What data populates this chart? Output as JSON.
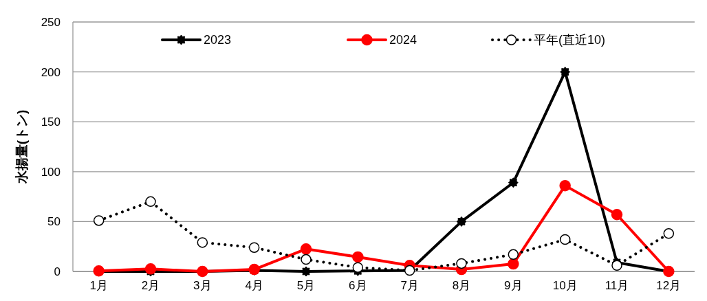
{
  "chart_data": {
    "type": "line",
    "ylabel": "水揚量(トン)",
    "categories": [
      "1月",
      "2月",
      "3月",
      "4月",
      "5月",
      "6月",
      "7月",
      "8月",
      "9月",
      "10月",
      "11月",
      "12月"
    ],
    "series": [
      {
        "name": "2023",
        "color": "#000000",
        "marker": "star",
        "line_style": "solid",
        "values": [
          0,
          0,
          0,
          1,
          0,
          0.5,
          1,
          50,
          89,
          200,
          9,
          0
        ]
      },
      {
        "name": "2024",
        "color": "#ff0000",
        "marker": "circle",
        "line_style": "solid",
        "values": [
          0.5,
          2.5,
          0,
          2,
          22.5,
          14.5,
          6,
          2,
          7.5,
          86,
          57,
          0
        ]
      },
      {
        "name": "平年(直近10)",
        "color": "#000000",
        "marker": "circle",
        "line_style": "dotted",
        "values": [
          51,
          70,
          29,
          24,
          12,
          4,
          1,
          8,
          17,
          32,
          6,
          38
        ]
      }
    ],
    "ylim": [
      0,
      250
    ],
    "yticks": [
      0,
      50,
      100,
      150,
      200,
      250
    ],
    "grid": "y",
    "legend": "top"
  }
}
